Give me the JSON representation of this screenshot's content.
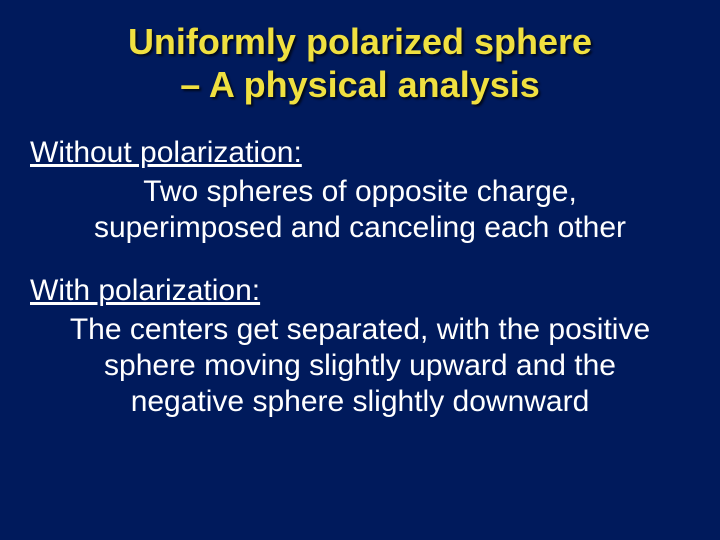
{
  "background_color": "#001a5c",
  "title": {
    "line1": "Uniformly polarized sphere",
    "line2": "– A physical analysis",
    "color": "#f0e040",
    "font_family": "Comic Sans MS",
    "fontsize": 36,
    "shadow": "2px 2px 2px rgba(0,0,0,0.7)"
  },
  "sections": [
    {
      "heading": "Without polarization:",
      "body": "Two spheres of opposite charge, superimposed and canceling each other"
    },
    {
      "heading": "With polarization:",
      "body": "The centers get separated, with the positive sphere moving slightly upward and the negative sphere slightly downward"
    }
  ],
  "text_color": "#ffffff",
  "body_font_family": "Arial",
  "body_fontsize": 30
}
